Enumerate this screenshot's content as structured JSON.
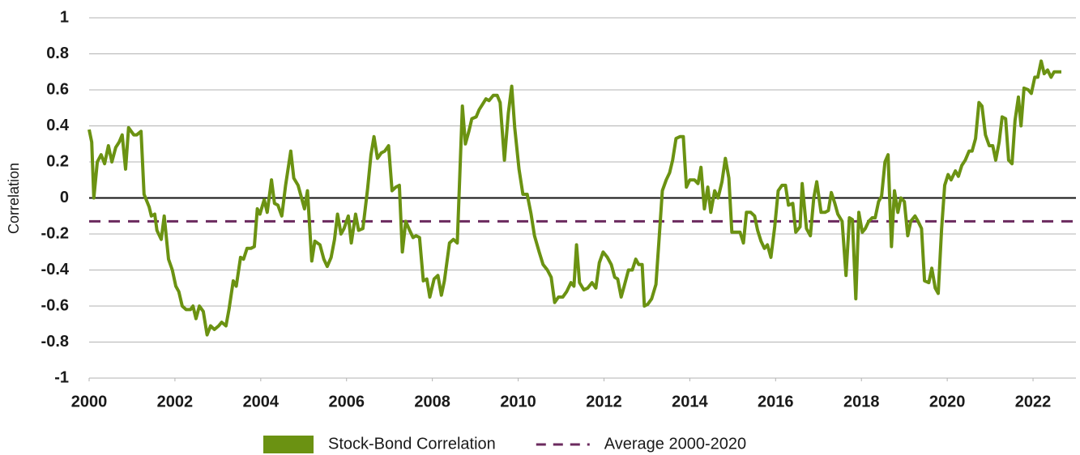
{
  "chart_data": {
    "type": "line",
    "y_label": "Correlation",
    "xlim": [
      2000,
      2023
    ],
    "xticks": [
      2000,
      2002,
      2004,
      2006,
      2008,
      2010,
      2012,
      2014,
      2016,
      2018,
      2020,
      2022
    ],
    "ylim": [
      -1,
      1
    ],
    "yticks": [
      -1,
      -0.8,
      -0.6,
      -0.4,
      -0.2,
      0,
      0.2,
      0.4,
      0.6,
      0.8,
      1
    ],
    "grid": true,
    "legend": "bottom",
    "series": [
      {
        "name": "Stock-Bond Correlation",
        "color": "#6b9212",
        "x": [
          2000.0,
          2000.06,
          2000.11,
          2000.19,
          2000.28,
          2000.36,
          2000.45,
          2000.53,
          2000.62,
          2000.7,
          2000.77,
          2000.85,
          2000.92,
          2001.04,
          2001.11,
          2001.21,
          2001.28,
          2001.4,
          2001.45,
          2001.53,
          2001.58,
          2001.68,
          2001.75,
          2001.85,
          2001.94,
          2002.02,
          2002.09,
          2002.17,
          2002.26,
          2002.36,
          2002.42,
          2002.49,
          2002.57,
          2002.66,
          2002.75,
          2002.83,
          2002.92,
          2003.02,
          2003.09,
          2003.19,
          2003.26,
          2003.36,
          2003.43,
          2003.53,
          2003.6,
          2003.68,
          2003.77,
          2003.85,
          2003.92,
          2003.98,
          2004.08,
          2004.15,
          2004.25,
          2004.32,
          2004.4,
          2004.49,
          2004.58,
          2004.7,
          2004.77,
          2004.87,
          2004.94,
          2005.02,
          2005.09,
          2005.19,
          2005.26,
          2005.38,
          2005.47,
          2005.55,
          2005.64,
          2005.72,
          2005.79,
          2005.87,
          2005.94,
          2006.04,
          2006.11,
          2006.21,
          2006.28,
          2006.38,
          2006.49,
          2006.57,
          2006.64,
          2006.72,
          2006.81,
          2006.89,
          2006.98,
          2007.06,
          2007.15,
          2007.23,
          2007.3,
          2007.38,
          2007.47,
          2007.55,
          2007.62,
          2007.7,
          2007.79,
          2007.87,
          2007.94,
          2008.04,
          2008.13,
          2008.21,
          2008.28,
          2008.4,
          2008.49,
          2008.58,
          2008.7,
          2008.77,
          2008.85,
          2008.92,
          2009.02,
          2009.09,
          2009.17,
          2009.25,
          2009.32,
          2009.42,
          2009.51,
          2009.58,
          2009.68,
          2009.77,
          2009.85,
          2009.92,
          2010.02,
          2010.11,
          2010.21,
          2010.3,
          2010.38,
          2010.49,
          2010.58,
          2010.68,
          2010.77,
          2010.85,
          2010.94,
          2011.04,
          2011.13,
          2011.23,
          2011.3,
          2011.36,
          2011.43,
          2011.53,
          2011.62,
          2011.72,
          2011.81,
          2011.89,
          2011.98,
          2012.08,
          2012.17,
          2012.25,
          2012.32,
          2012.4,
          2012.47,
          2012.57,
          2012.66,
          2012.74,
          2012.81,
          2012.89,
          2012.94,
          2013.02,
          2013.11,
          2013.21,
          2013.28,
          2013.36,
          2013.45,
          2013.53,
          2013.6,
          2013.68,
          2013.77,
          2013.85,
          2013.92,
          2014.0,
          2014.11,
          2014.19,
          2014.26,
          2014.34,
          2014.42,
          2014.49,
          2014.58,
          2014.66,
          2014.75,
          2014.83,
          2014.91,
          2014.98,
          2015.09,
          2015.17,
          2015.25,
          2015.32,
          2015.42,
          2015.51,
          2015.58,
          2015.66,
          2015.74,
          2015.81,
          2015.89,
          2015.98,
          2016.06,
          2016.15,
          2016.23,
          2016.3,
          2016.4,
          2016.47,
          2016.57,
          2016.62,
          2016.72,
          2016.81,
          2016.89,
          2016.96,
          2017.06,
          2017.15,
          2017.23,
          2017.3,
          2017.38,
          2017.45,
          2017.55,
          2017.64,
          2017.72,
          2017.79,
          2017.87,
          2017.94,
          2018.02,
          2018.09,
          2018.17,
          2018.25,
          2018.32,
          2018.4,
          2018.47,
          2018.55,
          2018.62,
          2018.7,
          2018.77,
          2018.85,
          2018.92,
          2019.0,
          2019.08,
          2019.15,
          2019.25,
          2019.32,
          2019.4,
          2019.47,
          2019.57,
          2019.64,
          2019.72,
          2019.79,
          2019.87,
          2019.94,
          2020.02,
          2020.09,
          2020.19,
          2020.26,
          2020.34,
          2020.42,
          2020.51,
          2020.58,
          2020.66,
          2020.74,
          2020.81,
          2020.89,
          2020.98,
          2021.06,
          2021.13,
          2021.21,
          2021.28,
          2021.36,
          2021.43,
          2021.51,
          2021.58,
          2021.66,
          2021.72,
          2021.79,
          2021.89,
          2021.96,
          2022.04,
          2022.11,
          2022.19,
          2022.26,
          2022.34,
          2022.42,
          2022.49,
          2022.57,
          2022.66
        ],
        "values": [
          0.38,
          0.31,
          0.0,
          0.2,
          0.24,
          0.19,
          0.29,
          0.2,
          0.28,
          0.31,
          0.35,
          0.16,
          0.39,
          0.35,
          0.35,
          0.37,
          0.02,
          -0.05,
          -0.1,
          -0.09,
          -0.18,
          -0.23,
          -0.1,
          -0.34,
          -0.4,
          -0.49,
          -0.52,
          -0.6,
          -0.62,
          -0.62,
          -0.6,
          -0.67,
          -0.6,
          -0.63,
          -0.76,
          -0.71,
          -0.73,
          -0.71,
          -0.69,
          -0.71,
          -0.62,
          -0.46,
          -0.49,
          -0.33,
          -0.34,
          -0.28,
          -0.28,
          -0.27,
          -0.06,
          -0.09,
          -0.01,
          -0.08,
          0.1,
          -0.03,
          -0.04,
          -0.1,
          0.07,
          0.26,
          0.11,
          0.07,
          0.01,
          -0.06,
          0.04,
          -0.35,
          -0.24,
          -0.26,
          -0.34,
          -0.38,
          -0.33,
          -0.23,
          -0.09,
          -0.2,
          -0.17,
          -0.1,
          -0.25,
          -0.09,
          -0.18,
          -0.17,
          0.05,
          0.24,
          0.34,
          0.22,
          0.25,
          0.26,
          0.29,
          0.04,
          0.06,
          0.07,
          -0.3,
          -0.13,
          -0.18,
          -0.22,
          -0.21,
          -0.22,
          -0.46,
          -0.45,
          -0.55,
          -0.45,
          -0.43,
          -0.54,
          -0.46,
          -0.25,
          -0.23,
          -0.25,
          0.51,
          0.3,
          0.37,
          0.44,
          0.45,
          0.49,
          0.52,
          0.55,
          0.54,
          0.57,
          0.57,
          0.53,
          0.21,
          0.47,
          0.62,
          0.39,
          0.16,
          0.02,
          0.02,
          -0.09,
          -0.21,
          -0.3,
          -0.37,
          -0.4,
          -0.44,
          -0.58,
          -0.55,
          -0.55,
          -0.52,
          -0.47,
          -0.49,
          -0.26,
          -0.47,
          -0.51,
          -0.5,
          -0.47,
          -0.5,
          -0.36,
          -0.3,
          -0.33,
          -0.37,
          -0.44,
          -0.45,
          -0.55,
          -0.49,
          -0.4,
          -0.4,
          -0.34,
          -0.37,
          -0.37,
          -0.6,
          -0.59,
          -0.56,
          -0.48,
          -0.24,
          0.04,
          0.1,
          0.14,
          0.21,
          0.33,
          0.34,
          0.34,
          0.06,
          0.1,
          0.1,
          0.08,
          0.17,
          -0.06,
          0.06,
          -0.08,
          0.04,
          0.0,
          0.09,
          0.22,
          0.11,
          -0.19,
          -0.19,
          -0.19,
          -0.25,
          -0.08,
          -0.08,
          -0.1,
          -0.18,
          -0.24,
          -0.28,
          -0.26,
          -0.33,
          -0.16,
          0.04,
          0.07,
          0.07,
          -0.04,
          -0.03,
          -0.19,
          -0.16,
          0.08,
          -0.17,
          -0.21,
          0.0,
          0.09,
          -0.08,
          -0.08,
          -0.07,
          0.03,
          -0.03,
          -0.09,
          -0.13,
          -0.43,
          -0.11,
          -0.12,
          -0.56,
          -0.08,
          -0.19,
          -0.17,
          -0.13,
          -0.11,
          -0.11,
          -0.02,
          0.01,
          0.2,
          0.24,
          -0.27,
          0.04,
          -0.08,
          0.0,
          -0.02,
          -0.21,
          -0.13,
          -0.1,
          -0.13,
          -0.17,
          -0.46,
          -0.47,
          -0.39,
          -0.5,
          -0.53,
          -0.17,
          0.07,
          0.13,
          0.1,
          0.15,
          0.12,
          0.18,
          0.21,
          0.26,
          0.26,
          0.33,
          0.53,
          0.51,
          0.35,
          0.29,
          0.29,
          0.21,
          0.31,
          0.45,
          0.44,
          0.21,
          0.19,
          0.43,
          0.56,
          0.4,
          0.61,
          0.6,
          0.58,
          0.67,
          0.67,
          0.76,
          0.69,
          0.71,
          0.67,
          0.7,
          0.7,
          0.7
        ]
      }
    ],
    "reference_lines": [
      {
        "name": "Average 2000-2020",
        "color": "#6b2a5e",
        "value": -0.13,
        "style": "dashed"
      }
    ]
  }
}
